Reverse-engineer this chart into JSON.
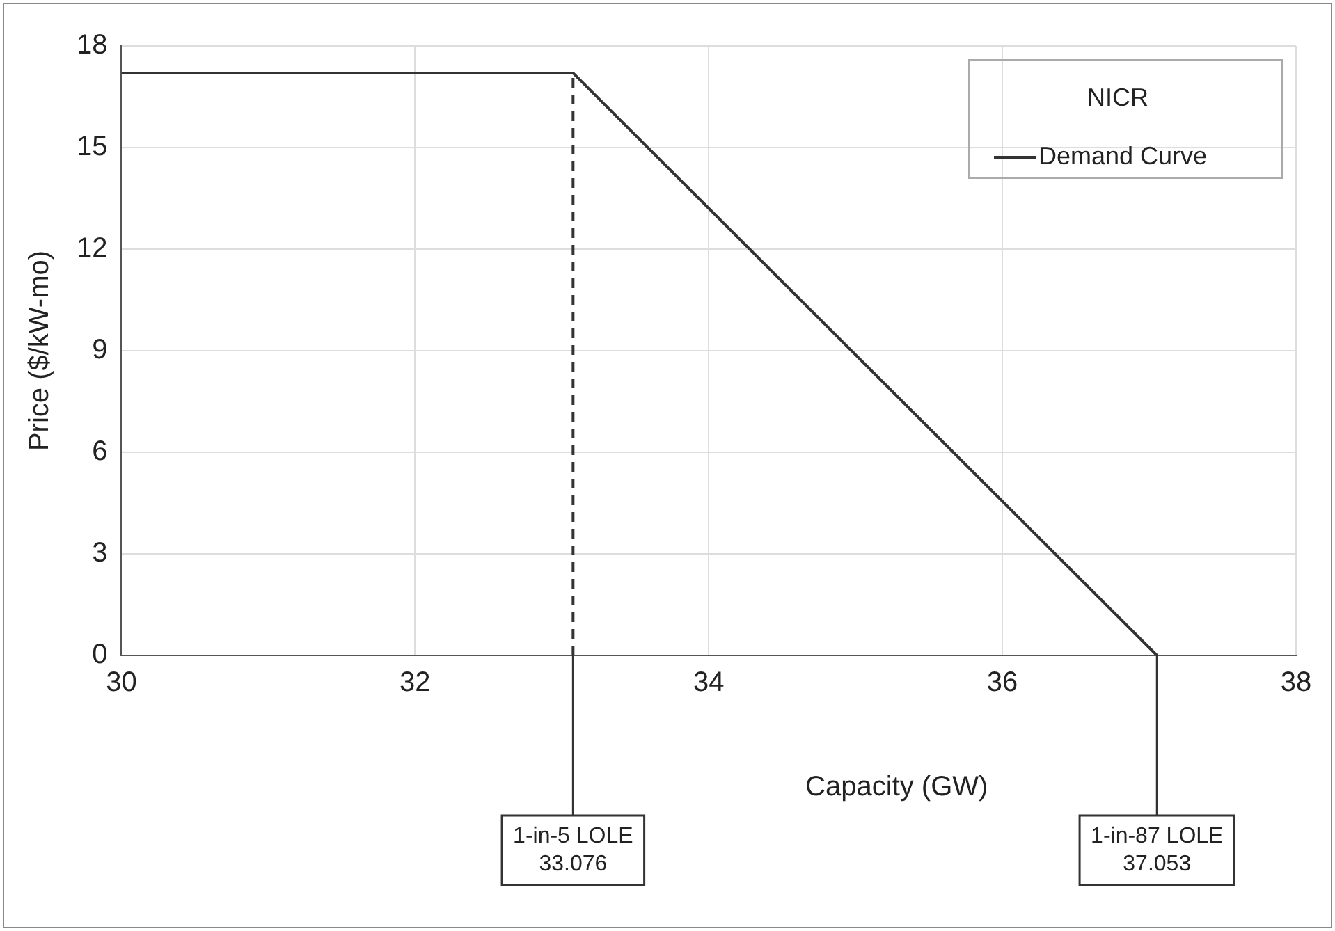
{
  "chart_data": {
    "type": "line",
    "xlabel": "Capacity (GW)",
    "ylabel": "Price ($/kW-mo)",
    "legend_title": "NICR",
    "series": [
      {
        "name": "Demand Curve",
        "color": "#333333",
        "x": [
          30,
          33.076,
          37.053
        ],
        "values": [
          17.2,
          17.2,
          0
        ],
        "line_style": "solid"
      },
      {
        "color": "#333333",
        "x": [
          33.076,
          33.076
        ],
        "values": [
          0,
          17.2
        ],
        "line_style": "dashed"
      }
    ],
    "xlim": [
      30,
      38
    ],
    "xticks": [
      30,
      32,
      34,
      36,
      38
    ],
    "ylim": [
      0,
      18
    ],
    "yticks": [
      0,
      3,
      6,
      9,
      12,
      15,
      18
    ],
    "grid": true,
    "legend": "top right",
    "marker": "none",
    "annotations": [
      {
        "text": "1-in-5 LOLE\n33.076",
        "x": 33.076,
        "y": 0
      },
      {
        "text": "1-in-87 LOLE\n37.053",
        "x": 37.053,
        "y": 0
      }
    ]
  }
}
